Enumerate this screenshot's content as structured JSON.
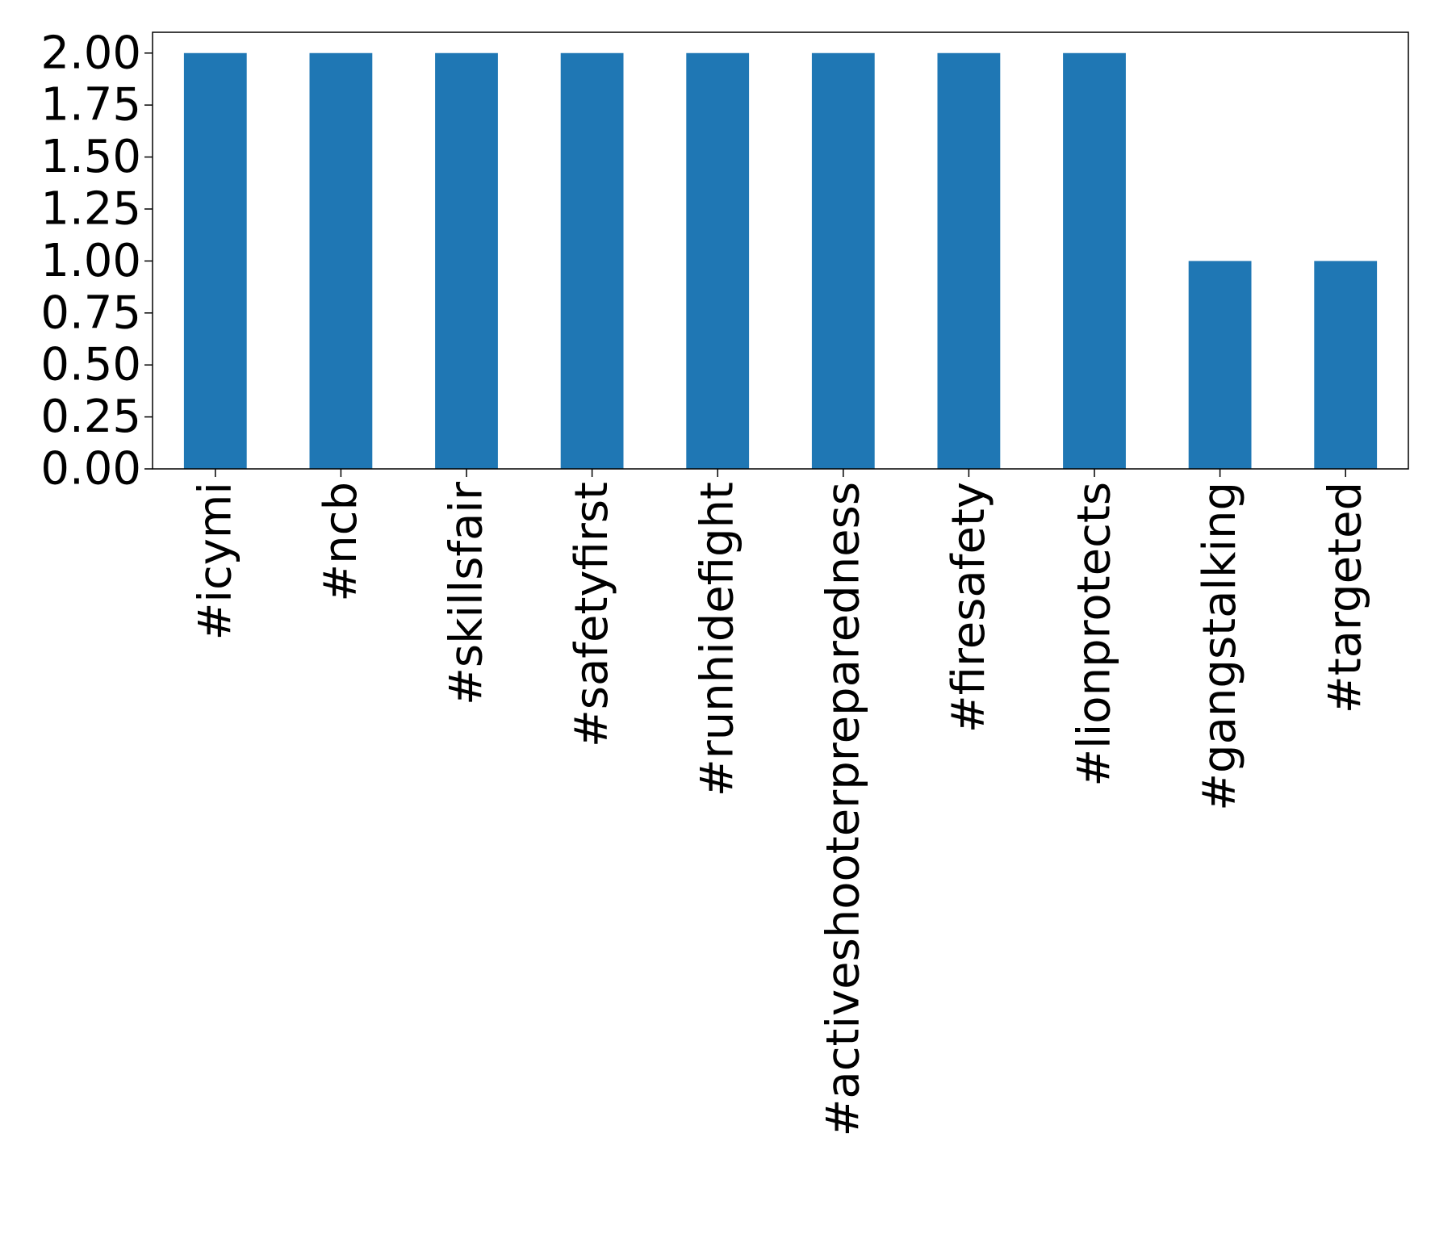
{
  "chart_data": {
    "type": "bar",
    "title": "",
    "xlabel": "",
    "ylabel": "",
    "categories": [
      "#icymi",
      "#ncb",
      "#skillsfair",
      "#safetyfirst",
      "#runhidefight",
      "#activeshooterpreparedness",
      "#firesafety",
      "#lionprotects",
      "#gangstalking",
      "#targeted"
    ],
    "values": [
      2,
      2,
      2,
      2,
      2,
      2,
      2,
      2,
      1,
      1
    ],
    "ylim": [
      0,
      2.1
    ],
    "yticks": [
      "0.00",
      "0.25",
      "0.50",
      "0.75",
      "1.00",
      "1.25",
      "1.50",
      "1.75",
      "2.00"
    ],
    "grid": false,
    "legend": "none",
    "bar_color": "#1f77b4"
  }
}
